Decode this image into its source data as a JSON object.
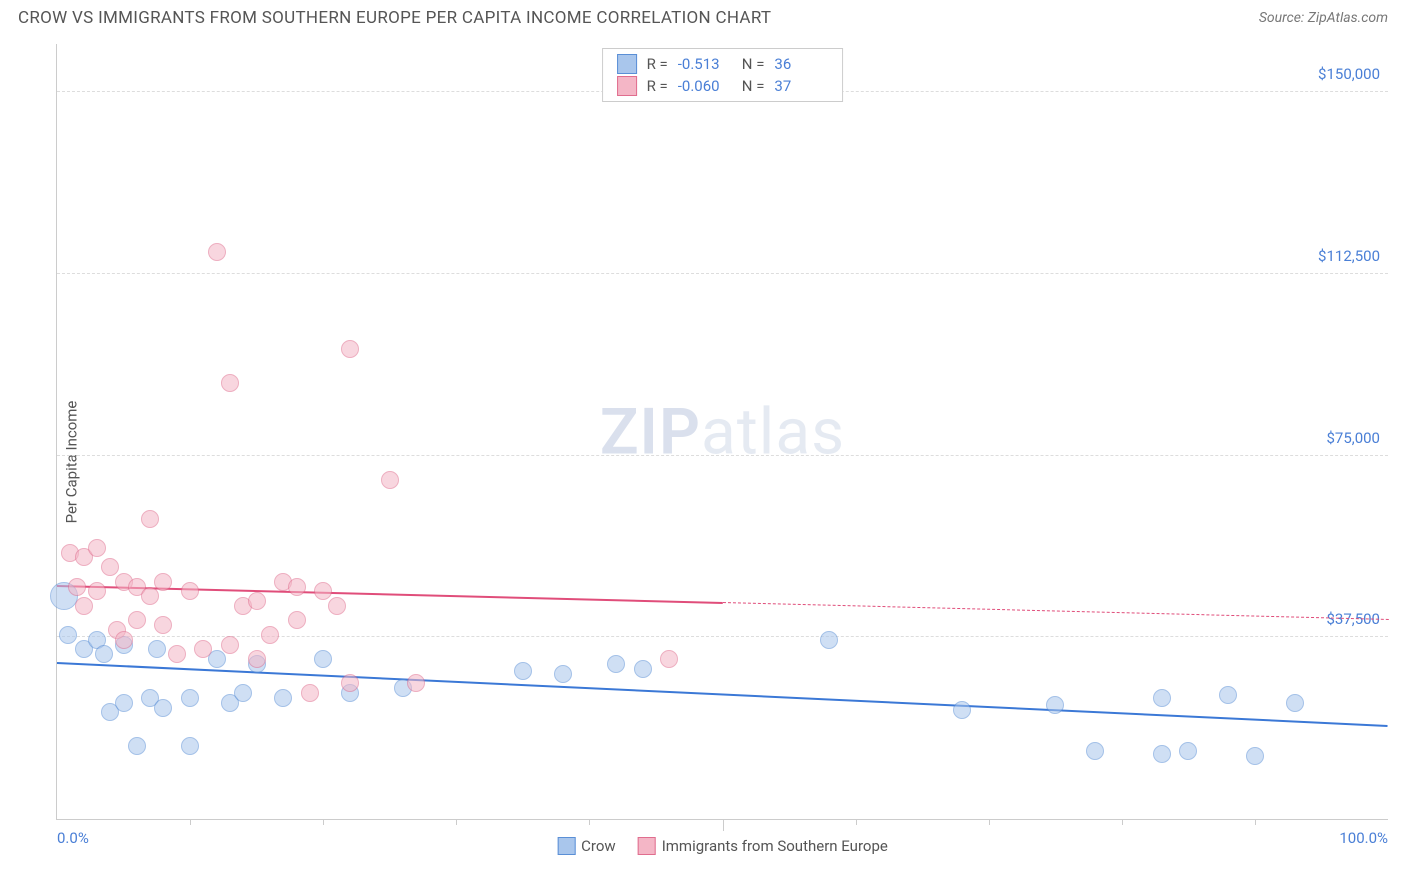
{
  "title": "CROW VS IMMIGRANTS FROM SOUTHERN EUROPE PER CAPITA INCOME CORRELATION CHART",
  "source_label": "Source: ZipAtlas.com",
  "ylabel": "Per Capita Income",
  "watermark_1": "ZIP",
  "watermark_2": "atlas",
  "chart": {
    "type": "scatter",
    "xlim": [
      0,
      100
    ],
    "ylim": [
      0,
      160000
    ],
    "y_ticks": [
      37500,
      75000,
      112500,
      150000
    ],
    "y_tick_labels": [
      "$37,500",
      "$75,000",
      "$112,500",
      "$150,000"
    ],
    "x_minor_ticks": [
      10,
      20,
      30,
      40,
      50,
      60,
      70,
      80,
      90
    ],
    "x_tick_labels": [
      {
        "pos": 0,
        "text": "0.0%"
      },
      {
        "pos": 100,
        "text": "100.0%"
      }
    ],
    "background_color": "#ffffff",
    "grid_color": "#dddddd",
    "axis_color": "#cccccc",
    "tick_label_color": "#4a7fd6",
    "marker_radius": 9,
    "marker_opacity": 0.55,
    "series": [
      {
        "name": "Crow",
        "color_fill": "#a9c6ec",
        "color_stroke": "#5a8fd6",
        "trend": {
          "x0": 0,
          "y0": 32000,
          "x1": 100,
          "y1": 19000,
          "color": "#3b78d6",
          "width": 2.5,
          "dash_after_x": 100
        },
        "points": [
          {
            "x": 0.5,
            "y": 46000,
            "r": 14
          },
          {
            "x": 0.8,
            "y": 38000
          },
          {
            "x": 2,
            "y": 35000
          },
          {
            "x": 3,
            "y": 37000
          },
          {
            "x": 3.5,
            "y": 34000
          },
          {
            "x": 4,
            "y": 22000
          },
          {
            "x": 5,
            "y": 24000
          },
          {
            "x": 5,
            "y": 36000
          },
          {
            "x": 6,
            "y": 15000
          },
          {
            "x": 7,
            "y": 25000
          },
          {
            "x": 7.5,
            "y": 35000
          },
          {
            "x": 8,
            "y": 23000
          },
          {
            "x": 10,
            "y": 15000
          },
          {
            "x": 10,
            "y": 25000
          },
          {
            "x": 12,
            "y": 33000
          },
          {
            "x": 13,
            "y": 24000
          },
          {
            "x": 14,
            "y": 26000
          },
          {
            "x": 15,
            "y": 32000
          },
          {
            "x": 17,
            "y": 25000
          },
          {
            "x": 20,
            "y": 33000
          },
          {
            "x": 22,
            "y": 26000
          },
          {
            "x": 26,
            "y": 27000
          },
          {
            "x": 35,
            "y": 30500
          },
          {
            "x": 38,
            "y": 30000
          },
          {
            "x": 42,
            "y": 32000
          },
          {
            "x": 44,
            "y": 31000
          },
          {
            "x": 58,
            "y": 37000
          },
          {
            "x": 68,
            "y": 22500
          },
          {
            "x": 75,
            "y": 23500
          },
          {
            "x": 78,
            "y": 14000
          },
          {
            "x": 83,
            "y": 25000
          },
          {
            "x": 83,
            "y": 13500
          },
          {
            "x": 85,
            "y": 14000
          },
          {
            "x": 88,
            "y": 25500
          },
          {
            "x": 90,
            "y": 13000
          },
          {
            "x": 93,
            "y": 24000
          }
        ]
      },
      {
        "name": "Immigrants from Southern Europe",
        "color_fill": "#f4b6c6",
        "color_stroke": "#e06d8e",
        "trend": {
          "x0": 0,
          "y0": 48000,
          "x1": 50,
          "y1": 44500,
          "x2": 100,
          "y2": 41000,
          "color": "#e04d7a",
          "width": 2,
          "dash_after_x": 50
        },
        "points": [
          {
            "x": 1,
            "y": 55000
          },
          {
            "x": 1.5,
            "y": 48000
          },
          {
            "x": 2,
            "y": 54000
          },
          {
            "x": 2,
            "y": 44000
          },
          {
            "x": 3,
            "y": 56000
          },
          {
            "x": 3,
            "y": 47000
          },
          {
            "x": 4,
            "y": 52000
          },
          {
            "x": 4.5,
            "y": 39000
          },
          {
            "x": 5,
            "y": 49000
          },
          {
            "x": 5,
            "y": 37000
          },
          {
            "x": 6,
            "y": 48000
          },
          {
            "x": 6,
            "y": 41000
          },
          {
            "x": 7,
            "y": 62000
          },
          {
            "x": 7,
            "y": 46000
          },
          {
            "x": 8,
            "y": 49000
          },
          {
            "x": 8,
            "y": 40000
          },
          {
            "x": 9,
            "y": 34000
          },
          {
            "x": 10,
            "y": 47000
          },
          {
            "x": 11,
            "y": 35000
          },
          {
            "x": 12,
            "y": 117000
          },
          {
            "x": 13,
            "y": 36000
          },
          {
            "x": 13,
            "y": 90000
          },
          {
            "x": 14,
            "y": 44000
          },
          {
            "x": 15,
            "y": 33000
          },
          {
            "x": 15,
            "y": 45000
          },
          {
            "x": 16,
            "y": 38000
          },
          {
            "x": 17,
            "y": 49000
          },
          {
            "x": 18,
            "y": 41000
          },
          {
            "x": 18,
            "y": 48000
          },
          {
            "x": 19,
            "y": 26000
          },
          {
            "x": 20,
            "y": 47000
          },
          {
            "x": 21,
            "y": 44000
          },
          {
            "x": 22,
            "y": 97000
          },
          {
            "x": 22,
            "y": 28000
          },
          {
            "x": 25,
            "y": 70000
          },
          {
            "x": 27,
            "y": 28000
          },
          {
            "x": 46,
            "y": 33000
          }
        ]
      }
    ],
    "legend_bottom": [
      {
        "swatch_fill": "#a9c6ec",
        "swatch_stroke": "#5a8fd6",
        "label": "Crow"
      },
      {
        "swatch_fill": "#f4b6c6",
        "swatch_stroke": "#e06d8e",
        "label": "Immigrants from Southern Europe"
      }
    ],
    "stat_box": [
      {
        "swatch_fill": "#a9c6ec",
        "swatch_stroke": "#5a8fd6",
        "r_label": "R =",
        "r_val": "-0.513",
        "n_label": "N =",
        "n_val": "36"
      },
      {
        "swatch_fill": "#f4b6c6",
        "swatch_stroke": "#e06d8e",
        "r_label": "R =",
        "r_val": "-0.060",
        "n_label": "N =",
        "n_val": "37"
      }
    ]
  }
}
